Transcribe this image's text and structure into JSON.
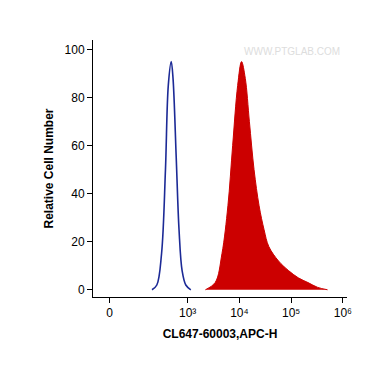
{
  "chart_data": {
    "type": "line",
    "x_label": "CL647-60003,APC-H",
    "y_label": "Relative Cell Number",
    "annotations": [
      "WWW.PTGLAB.COM"
    ],
    "xlim": [
      -50,
      1200000
    ],
    "xticks": [
      0,
      {
        "value": 1000,
        "label": "10³"
      },
      {
        "value": 10000,
        "label": "10⁴"
      },
      {
        "value": 100000,
        "label": "10⁵"
      },
      {
        "value": 1000000,
        "label": "10⁶"
      }
    ],
    "ylim": [
      -3,
      104
    ],
    "yticks": [
      0,
      20,
      40,
      60,
      80,
      100
    ],
    "grid": false,
    "series": [
      {
        "type": "line",
        "color": "#1c2a96",
        "x": [
          200,
          250,
          310,
          370,
          420,
          480,
          520,
          600,
          680,
          780,
          920,
          1150
        ],
        "values": [
          0,
          2,
          15,
          50,
          85,
          95,
          88,
          55,
          25,
          8,
          2,
          0
        ]
      },
      {
        "type": "area",
        "color": "#cc0000",
        "x": [
          2200,
          3400,
          4600,
          6000,
          7400,
          9250,
          11000,
          13000,
          15600,
          19200,
          24000,
          30000,
          37000,
          57000,
          89000,
          137000,
          212000,
          326000,
          505000
        ],
        "values": [
          0,
          3,
          15,
          35,
          60,
          85,
          95,
          88,
          70,
          50,
          35,
          25,
          18,
          12,
          8,
          5,
          3,
          1,
          0
        ]
      }
    ]
  }
}
